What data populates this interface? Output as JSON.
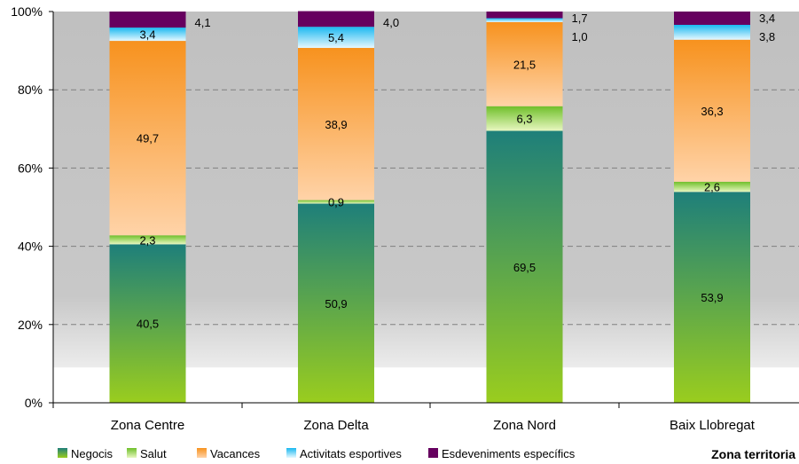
{
  "chart_data": {
    "type": "bar",
    "stacked": true,
    "percent": true,
    "categories": [
      "Zona Centre",
      "Zona Delta",
      "Zona Nord",
      "Baix Llobregat"
    ],
    "series": [
      {
        "name": "Negocis",
        "values": [
          40.5,
          50.9,
          69.5,
          53.9
        ],
        "labels": [
          "40,5",
          "50,9",
          "69,5",
          "53,9"
        ],
        "color": "#1e7f7a",
        "color2": "#9acd1e"
      },
      {
        "name": "Salut",
        "values": [
          2.3,
          0.9,
          6.3,
          2.6
        ],
        "labels": [
          "2,3",
          "0,9",
          "6,3",
          "2,6"
        ],
        "color": "#6fbf2a",
        "color2": "#e8f7c0"
      },
      {
        "name": "Vacances",
        "values": [
          49.7,
          38.9,
          21.5,
          36.3
        ],
        "labels": [
          "49,7",
          "38,9",
          "21,5",
          "36,3"
        ],
        "color": "#f7921e",
        "color2": "#ffd3a8"
      },
      {
        "name": "Activitats esportives",
        "values": [
          3.4,
          5.4,
          1.0,
          3.8
        ],
        "labels": [
          "3,4",
          "5,4",
          "1,0",
          "3,8"
        ],
        "color": "#1ab8f0",
        "color2": "#e6f8ff"
      },
      {
        "name": "Esdeveniments específics",
        "values": [
          4.1,
          4.0,
          1.7,
          3.4
        ],
        "labels": [
          "4,1",
          "4,0",
          "1,7",
          "3,4"
        ],
        "color": "#66005f",
        "color2": "#66005f"
      }
    ],
    "ylim": [
      0,
      100
    ],
    "yticks": [
      "0%",
      "20%",
      "40%",
      "60%",
      "80%",
      "100%"
    ],
    "xlabel": "Zona territoria",
    "grid": true,
    "legend": "bottom"
  }
}
